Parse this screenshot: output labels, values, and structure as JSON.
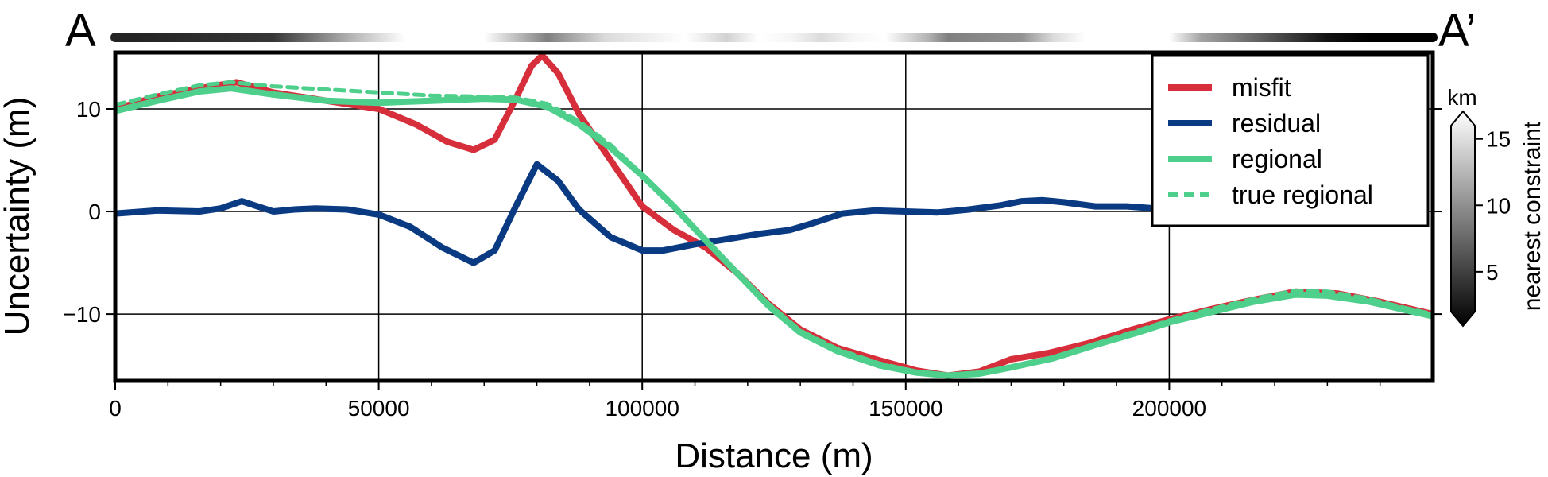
{
  "chart_data": {
    "type": "line",
    "section_labels": {
      "start": "A",
      "end": "A’"
    },
    "xlabel": "Distance (m)",
    "ylabel": "Uncertainty (m)",
    "xlim": [
      0,
      250000
    ],
    "ylim": [
      -16.5,
      15.5
    ],
    "xticks": [
      0,
      50000,
      100000,
      150000,
      200000
    ],
    "yticks": [
      -10,
      0,
      10
    ],
    "grid": true,
    "legend_position": "top-right",
    "series": [
      {
        "name": "misfit",
        "color": "#d62f3b",
        "style": "solid",
        "points": [
          [
            0,
            10.0
          ],
          [
            8000,
            11.2
          ],
          [
            16000,
            12.0
          ],
          [
            23000,
            12.6
          ],
          [
            30000,
            11.6
          ],
          [
            40000,
            10.8
          ],
          [
            50000,
            10.0
          ],
          [
            57000,
            8.5
          ],
          [
            63000,
            6.8
          ],
          [
            68000,
            6.0
          ],
          [
            72000,
            7.0
          ],
          [
            76000,
            11.0
          ],
          [
            79000,
            14.2
          ],
          [
            81000,
            15.2
          ],
          [
            84000,
            13.5
          ],
          [
            88000,
            9.5
          ],
          [
            94000,
            5.0
          ],
          [
            100000,
            0.5
          ],
          [
            106000,
            -1.8
          ],
          [
            112000,
            -3.5
          ],
          [
            118000,
            -6.0
          ],
          [
            124000,
            -9.0
          ],
          [
            130000,
            -11.5
          ],
          [
            137000,
            -13.3
          ],
          [
            145000,
            -14.5
          ],
          [
            152000,
            -15.5
          ],
          [
            158000,
            -16.0
          ],
          [
            164000,
            -15.6
          ],
          [
            170000,
            -14.4
          ],
          [
            177000,
            -13.8
          ],
          [
            185000,
            -12.8
          ],
          [
            193000,
            -11.5
          ],
          [
            200000,
            -10.5
          ],
          [
            208000,
            -9.5
          ],
          [
            216000,
            -8.6
          ],
          [
            224000,
            -7.8
          ],
          [
            232000,
            -8.0
          ],
          [
            240000,
            -8.8
          ],
          [
            250000,
            -10.0
          ]
        ]
      },
      {
        "name": "residual",
        "color": "#0a3b82",
        "style": "solid",
        "points": [
          [
            0,
            -0.2
          ],
          [
            8000,
            0.1
          ],
          [
            16000,
            0.0
          ],
          [
            20000,
            0.3
          ],
          [
            24000,
            1.0
          ],
          [
            27000,
            0.5
          ],
          [
            30000,
            0.0
          ],
          [
            34000,
            0.2
          ],
          [
            38000,
            0.3
          ],
          [
            44000,
            0.2
          ],
          [
            50000,
            -0.3
          ],
          [
            56000,
            -1.5
          ],
          [
            62000,
            -3.5
          ],
          [
            68000,
            -5.0
          ],
          [
            72000,
            -3.8
          ],
          [
            76000,
            0.5
          ],
          [
            80000,
            4.6
          ],
          [
            84000,
            3.0
          ],
          [
            88000,
            0.2
          ],
          [
            94000,
            -2.5
          ],
          [
            100000,
            -3.8
          ],
          [
            104000,
            -3.8
          ],
          [
            110000,
            -3.2
          ],
          [
            116000,
            -2.7
          ],
          [
            122000,
            -2.2
          ],
          [
            128000,
            -1.8
          ],
          [
            132000,
            -1.2
          ],
          [
            138000,
            -0.2
          ],
          [
            144000,
            0.1
          ],
          [
            150000,
            0.0
          ],
          [
            156000,
            -0.1
          ],
          [
            162000,
            0.2
          ],
          [
            168000,
            0.6
          ],
          [
            172000,
            1.0
          ],
          [
            176000,
            1.1
          ],
          [
            180000,
            0.9
          ],
          [
            186000,
            0.5
          ],
          [
            192000,
            0.5
          ],
          [
            200000,
            0.2
          ]
        ]
      },
      {
        "name": "regional",
        "color": "#4ecf8b",
        "style": "solid",
        "points": [
          [
            0,
            9.8
          ],
          [
            8000,
            10.8
          ],
          [
            16000,
            11.7
          ],
          [
            22000,
            12.0
          ],
          [
            30000,
            11.4
          ],
          [
            40000,
            10.8
          ],
          [
            50000,
            10.6
          ],
          [
            60000,
            10.8
          ],
          [
            70000,
            11.0
          ],
          [
            76000,
            10.9
          ],
          [
            82000,
            10.2
          ],
          [
            88000,
            8.5
          ],
          [
            94000,
            6.2
          ],
          [
            100000,
            3.5
          ],
          [
            106000,
            0.5
          ],
          [
            112000,
            -2.8
          ],
          [
            118000,
            -6.0
          ],
          [
            124000,
            -9.2
          ],
          [
            130000,
            -11.8
          ],
          [
            137000,
            -13.6
          ],
          [
            145000,
            -15.0
          ],
          [
            152000,
            -15.7
          ],
          [
            158000,
            -16.0
          ],
          [
            164000,
            -15.8
          ],
          [
            170000,
            -15.2
          ],
          [
            178000,
            -14.3
          ],
          [
            186000,
            -13.0
          ],
          [
            194000,
            -11.8
          ],
          [
            200000,
            -10.8
          ],
          [
            208000,
            -9.8
          ],
          [
            216000,
            -8.8
          ],
          [
            224000,
            -8.1
          ],
          [
            230000,
            -8.2
          ],
          [
            238000,
            -8.8
          ],
          [
            244000,
            -9.5
          ],
          [
            250000,
            -10.2
          ]
        ]
      },
      {
        "name": "true regional",
        "color": "#4ecf8b",
        "style": "dashed",
        "points": [
          [
            0,
            10.4
          ],
          [
            8000,
            11.4
          ],
          [
            16000,
            12.3
          ],
          [
            22000,
            12.6
          ],
          [
            30000,
            12.2
          ],
          [
            40000,
            11.9
          ],
          [
            50000,
            11.6
          ],
          [
            60000,
            11.3
          ],
          [
            70000,
            11.2
          ],
          [
            76000,
            11.1
          ],
          [
            82000,
            10.5
          ],
          [
            88000,
            8.8
          ],
          [
            94000,
            6.5
          ],
          [
            100000,
            3.6
          ],
          [
            106000,
            0.6
          ],
          [
            112000,
            -2.6
          ],
          [
            118000,
            -5.9
          ],
          [
            124000,
            -9.0
          ],
          [
            130000,
            -11.6
          ],
          [
            137000,
            -13.4
          ],
          [
            145000,
            -14.8
          ],
          [
            152000,
            -15.6
          ],
          [
            158000,
            -15.9
          ],
          [
            164000,
            -15.7
          ],
          [
            170000,
            -15.1
          ],
          [
            178000,
            -14.2
          ],
          [
            186000,
            -12.9
          ],
          [
            194000,
            -11.6
          ],
          [
            200000,
            -10.6
          ],
          [
            208000,
            -9.5
          ],
          [
            216000,
            -8.5
          ],
          [
            224000,
            -7.7
          ],
          [
            230000,
            -7.8
          ],
          [
            238000,
            -8.5
          ],
          [
            244000,
            -9.3
          ],
          [
            250000,
            -10.0
          ]
        ]
      }
    ],
    "constraint_bar": {
      "description": "distance to nearest constraint along profile (km)",
      "segments": [
        [
          0,
          4.0
        ],
        [
          4000,
          4.0
        ],
        [
          30000,
          5.0
        ],
        [
          45000,
          12.0
        ],
        [
          55000,
          16.0
        ],
        [
          70000,
          16.0
        ],
        [
          82000,
          9.0
        ],
        [
          93000,
          14.0
        ],
        [
          108000,
          16.0
        ],
        [
          110000,
          15.5
        ],
        [
          116000,
          13.5
        ],
        [
          122000,
          16.0
        ],
        [
          128000,
          15.5
        ],
        [
          134000,
          14.0
        ],
        [
          140000,
          15.5
        ],
        [
          146000,
          16.0
        ],
        [
          154000,
          12.0
        ],
        [
          158000,
          9.0
        ],
        [
          172000,
          10.0
        ],
        [
          178000,
          14.0
        ],
        [
          184000,
          16.0
        ],
        [
          200000,
          16.0
        ],
        [
          206000,
          11.0
        ],
        [
          218000,
          7.0
        ],
        [
          230000,
          3.0
        ],
        [
          238000,
          2.0
        ],
        [
          250000,
          2.0
        ]
      ]
    },
    "colorbar": {
      "label": "nearest constraint",
      "unit": "km",
      "ticks": [
        5,
        10,
        15
      ],
      "range": [
        2,
        16
      ],
      "colormap": "greyscale (black low, white high)"
    }
  }
}
